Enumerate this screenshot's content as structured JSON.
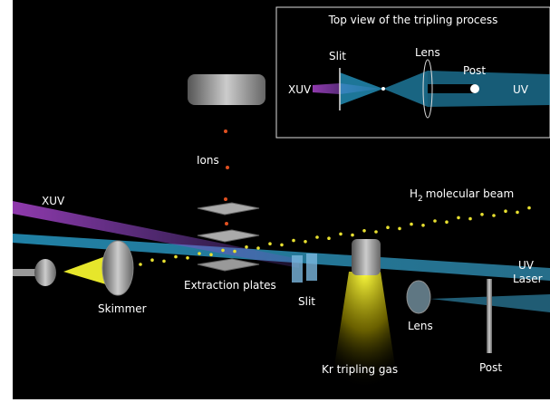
{
  "inset": {
    "title": "Top view of the tripling process",
    "slit": "Slit",
    "lens": "Lens",
    "post": "Post",
    "xuv": "XUV",
    "uv": "UV"
  },
  "main": {
    "ions": "Ions",
    "xuv": "XUV",
    "beam_h": "H",
    "beam_sub": "2",
    "beam_rest": "molecular beam",
    "uv_line1": "UV",
    "uv_line2": "Laser",
    "skimmer": "Skimmer",
    "extraction": "Extraction plates",
    "slit": "Slit",
    "lens": "Lens",
    "post": "Post",
    "kr": "Kr tripling gas"
  }
}
